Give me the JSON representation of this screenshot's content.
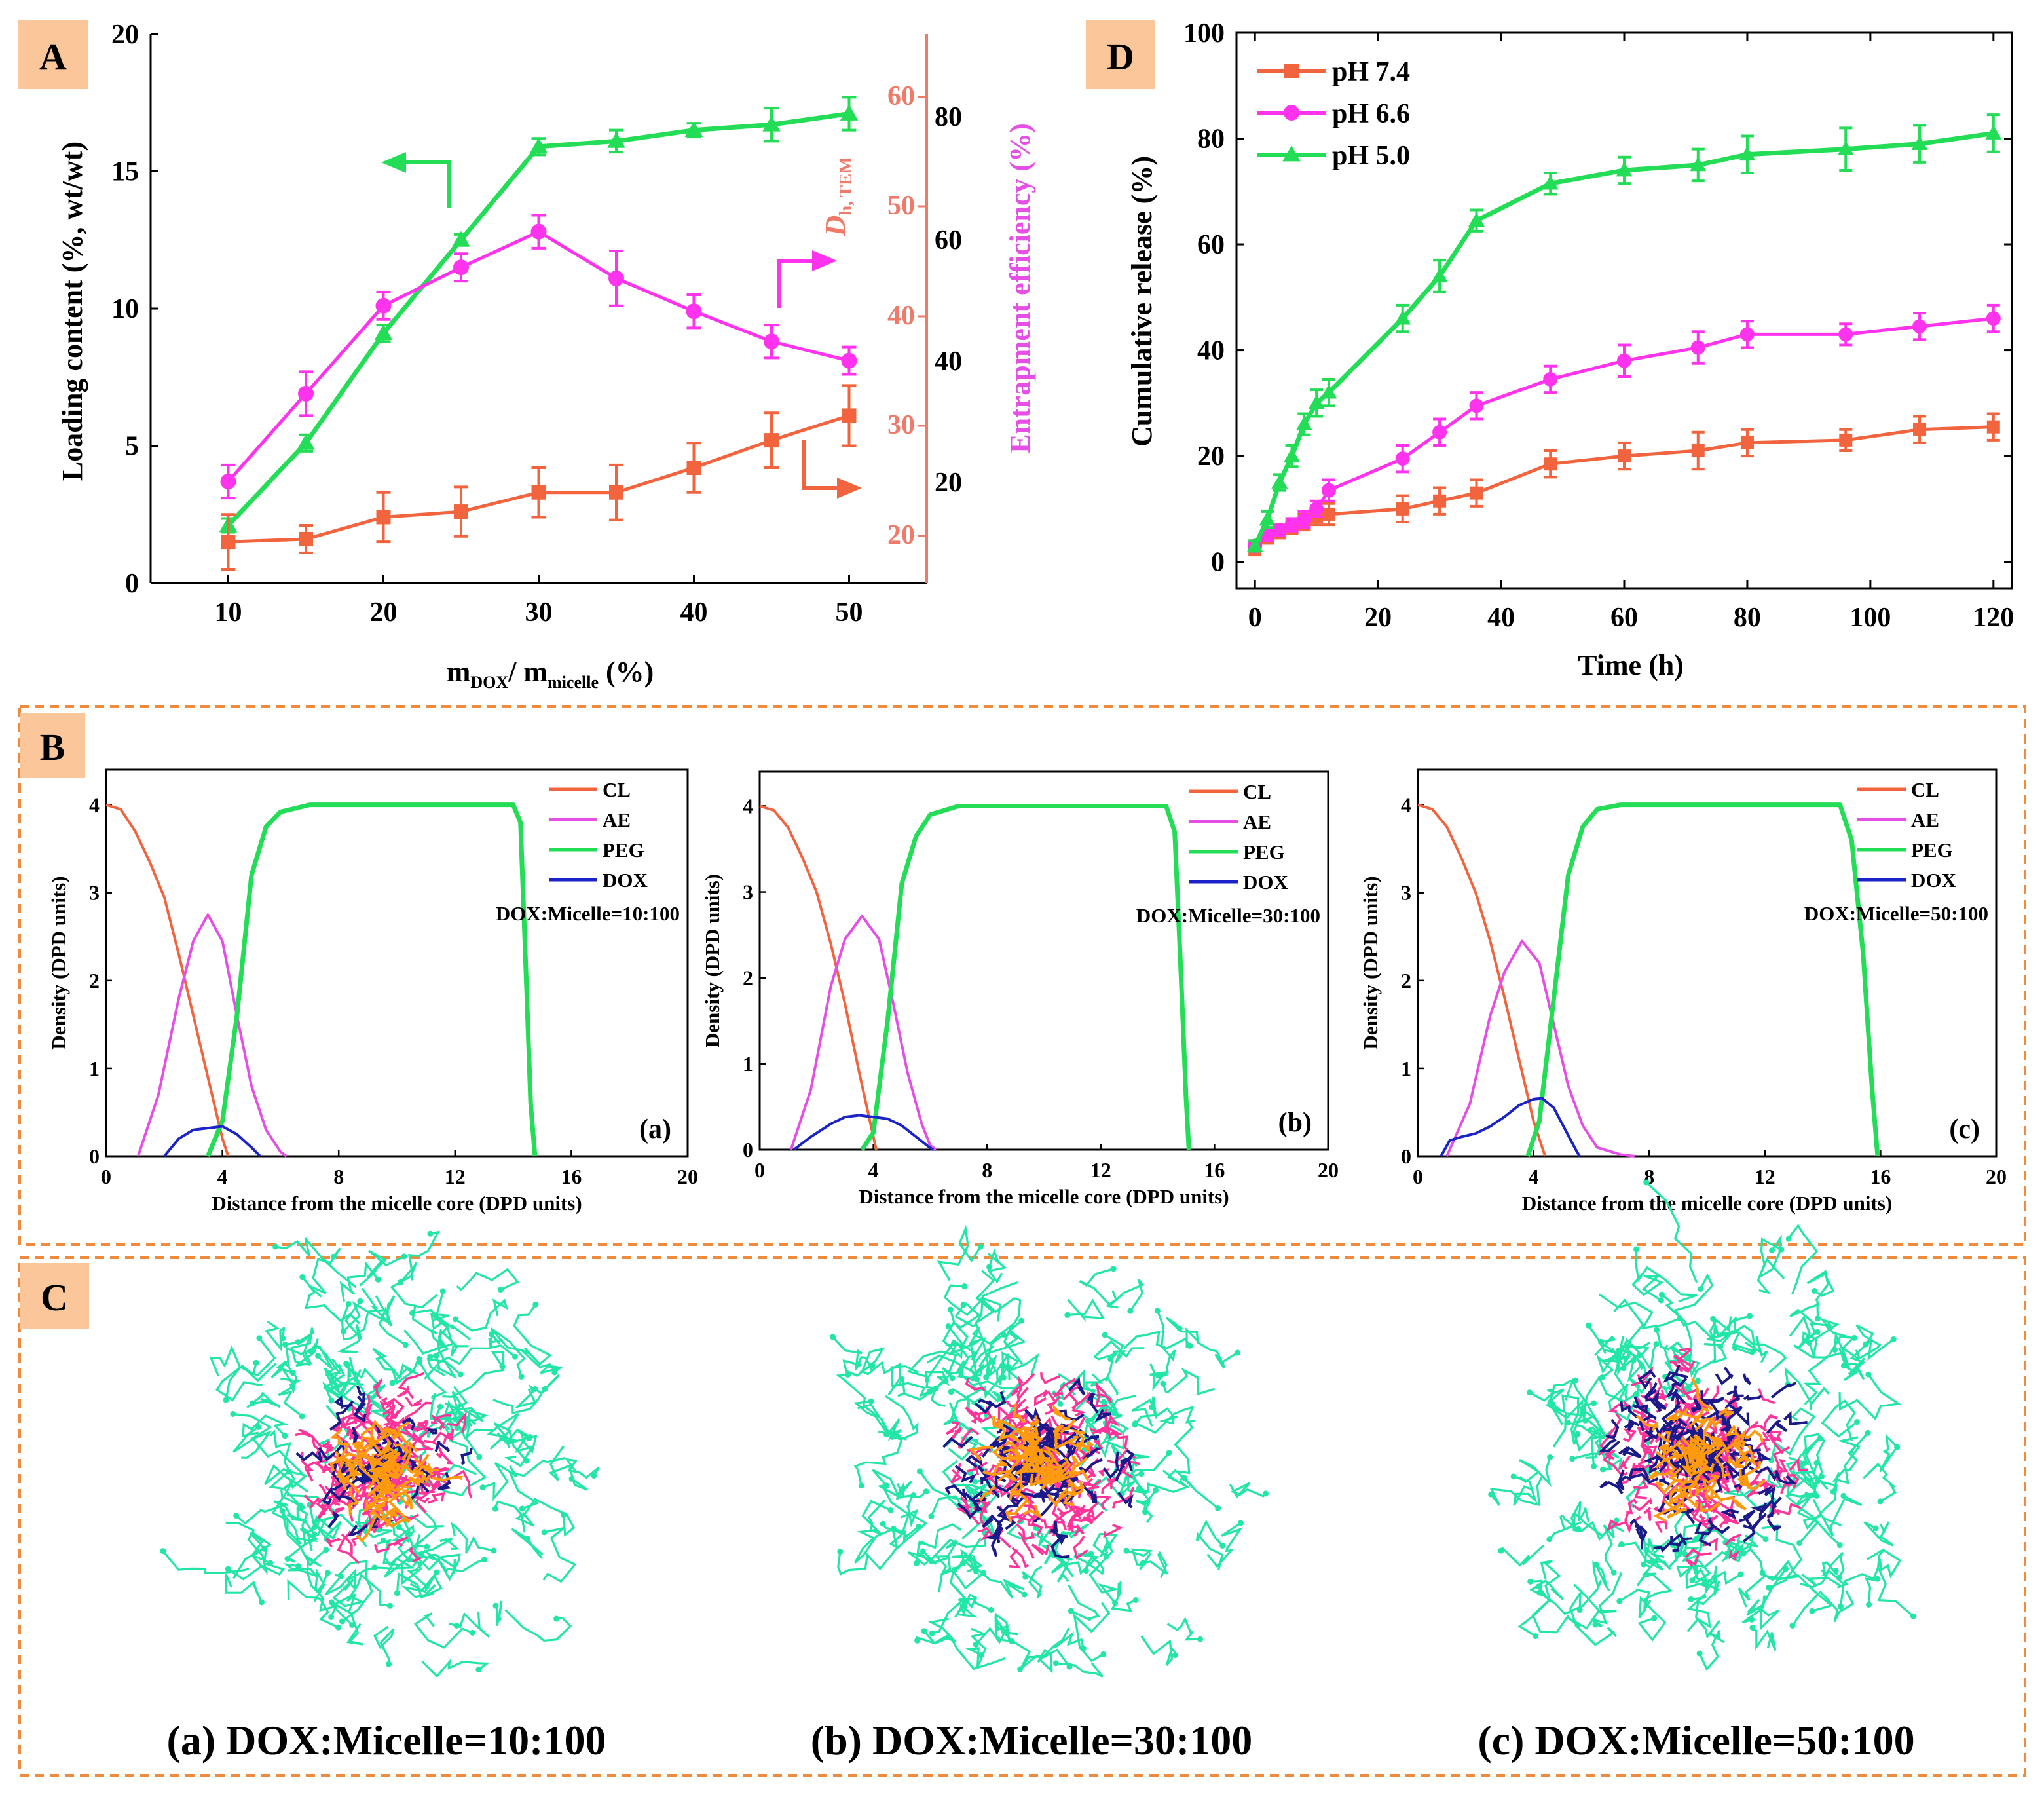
{
  "colors": {
    "green": "#22dd55",
    "magenta": "#ff33ee",
    "orange": "#f2643e",
    "blue": "#1a22c8",
    "salmon": "#f07a6a",
    "violet": "#e64fe6",
    "badge": "#fbc79a",
    "frame": "#f08a3c",
    "peg_chain": "#22e6a8",
    "core_pink": "#ff3399",
    "core_navy": "#1c1a8a",
    "core_orange": "#ff9a10"
  },
  "panels": {
    "A": {
      "badge": "A"
    },
    "B": {
      "badge": "B"
    },
    "C": {
      "badge": "C",
      "captions": [
        "(a) DOX:Micelle=10:100",
        "(b) DOX:Micelle=30:100",
        "(c) DOX:Micelle=50:100"
      ]
    },
    "D": {
      "badge": "D"
    }
  },
  "chart_data": [
    {
      "id": "A",
      "type": "line",
      "xlabel_main": "m",
      "xlabel_sub1": "DOX",
      "xlabel_mid": "/ m",
      "xlabel_sub2": "micelle",
      "xlabel_end": " (%)",
      "ylabel": "Loading content (%, wt/wt)",
      "y2label_italic": "D",
      "y2label_sub": "h, TEM",
      "y3label": "Entrapment efficiency (%)",
      "x": [
        10,
        15,
        20,
        25,
        30,
        35,
        40,
        45,
        50
      ],
      "xlim": [
        5,
        55
      ],
      "xticks": [
        10,
        20,
        30,
        40,
        50
      ],
      "ylim": [
        0,
        20
      ],
      "yticks": [
        0,
        5,
        10,
        15,
        20
      ],
      "y2ticks": [
        20,
        30,
        40,
        50,
        60
      ],
      "y3ticks": [
        20,
        40,
        60,
        80
      ],
      "series": [
        {
          "name": "Loading content",
          "axis": "left",
          "color": "green",
          "marker": "triangle",
          "values": [
            2.1,
            5.1,
            9.1,
            12.5,
            15.9,
            16.1,
            16.5,
            16.7,
            17.1
          ],
          "errors": [
            0.25,
            0.3,
            0.3,
            0.2,
            0.3,
            0.4,
            0.25,
            0.6,
            0.6
          ]
        },
        {
          "name": "Entrapment efficiency",
          "axis": "left",
          "color": "magenta",
          "marker": "circle",
          "values": [
            3.7,
            6.9,
            10.1,
            11.5,
            12.8,
            11.1,
            9.9,
            8.8,
            8.1
          ],
          "errors": [
            0.6,
            0.8,
            0.5,
            0.5,
            0.6,
            1.0,
            0.6,
            0.6,
            0.5
          ]
        },
        {
          "name": "Dh,TEM",
          "axis": "left",
          "color": "orange",
          "marker": "square",
          "values": [
            1.5,
            1.6,
            2.4,
            2.6,
            3.3,
            3.3,
            4.2,
            5.2,
            6.1
          ],
          "errors": [
            1.0,
            0.5,
            0.9,
            0.9,
            0.9,
            1.0,
            0.9,
            1.0,
            1.1
          ]
        }
      ]
    },
    {
      "id": "D",
      "type": "line",
      "xlabel": "Time (h)",
      "ylabel": "Cumulative release (%)",
      "xlim": [
        -3,
        123
      ],
      "ylim": [
        -5,
        100
      ],
      "xticks": [
        0,
        20,
        40,
        60,
        80,
        100,
        120
      ],
      "yticks": [
        0,
        20,
        40,
        60,
        80,
        100
      ],
      "x": [
        0,
        2,
        4,
        6,
        8,
        10,
        12,
        24,
        30,
        36,
        48,
        60,
        72,
        80,
        96,
        108,
        120
      ],
      "series": [
        {
          "name": "pH 7.4",
          "color": "orange",
          "marker": "square",
          "values": [
            2.5,
            4.5,
            5.5,
            6.5,
            7.5,
            8.5,
            9.0,
            10.0,
            11.5,
            13.0,
            18.5,
            20.0,
            21.0,
            22.5,
            23.0,
            25.0,
            25.5
          ],
          "errors": [
            1.2,
            1.0,
            1.0,
            1.2,
            1.5,
            1.5,
            2.0,
            2.5,
            2.5,
            2.5,
            2.5,
            2.5,
            3.5,
            2.5,
            2.0,
            2.5,
            2.5
          ]
        },
        {
          "name": "pH 6.6",
          "color": "magenta",
          "marker": "circle",
          "values": [
            3.0,
            5.0,
            6.0,
            7.0,
            8.0,
            10.0,
            13.5,
            19.5,
            24.5,
            29.5,
            34.5,
            38.0,
            40.5,
            43.0,
            43.0,
            44.5,
            46.0
          ],
          "errors": [
            1.0,
            1.0,
            1.0,
            1.2,
            1.5,
            1.5,
            2.0,
            2.5,
            2.5,
            2.5,
            2.5,
            3.0,
            3.0,
            2.5,
            2.0,
            2.5,
            2.5
          ]
        },
        {
          "name": "pH 5.0",
          "color": "green",
          "marker": "triangle",
          "values": [
            3.0,
            8.0,
            15.0,
            20.0,
            26.0,
            30.0,
            32.0,
            46.0,
            54.0,
            64.5,
            71.5,
            74.0,
            75.0,
            77.0,
            78.0,
            79.0,
            81.0
          ],
          "errors": [
            1.0,
            1.5,
            1.5,
            2.0,
            2.0,
            2.5,
            2.5,
            2.5,
            3.0,
            2.0,
            2.0,
            2.5,
            3.0,
            3.5,
            4.0,
            3.5,
            3.5
          ]
        }
      ]
    },
    {
      "id": "B-a",
      "type": "line",
      "xlabel": "Distance from the micelle core (DPD units)",
      "ylabel": "Density (DPD units)",
      "xlim": [
        0,
        20
      ],
      "ylim": [
        0,
        4.4
      ],
      "xticks": [
        0,
        4,
        8,
        12,
        16,
        20
      ],
      "yticks": [
        0,
        1,
        2,
        3,
        4
      ],
      "annotation": "DOX:Micelle=10:100",
      "tag": "(a)",
      "series": [
        {
          "name": "CL",
          "color": "orange",
          "points": [
            [
              0,
              4.0
            ],
            [
              0.5,
              3.95
            ],
            [
              1,
              3.7
            ],
            [
              1.5,
              3.35
            ],
            [
              2,
              2.95
            ],
            [
              2.5,
              2.3
            ],
            [
              3,
              1.6
            ],
            [
              3.5,
              0.9
            ],
            [
              4,
              0.2
            ],
            [
              4.2,
              0
            ]
          ]
        },
        {
          "name": "AE",
          "color": "violet",
          "points": [
            [
              1.1,
              0
            ],
            [
              1.8,
              0.7
            ],
            [
              2.5,
              1.8
            ],
            [
              3,
              2.45
            ],
            [
              3.5,
              2.75
            ],
            [
              4,
              2.45
            ],
            [
              4.5,
              1.6
            ],
            [
              5,
              0.8
            ],
            [
              5.5,
              0.3
            ],
            [
              6,
              0.05
            ],
            [
              6.2,
              0
            ]
          ]
        },
        {
          "name": "PEG",
          "color": "green",
          "points": [
            [
              3.5,
              0
            ],
            [
              4,
              0.4
            ],
            [
              4.5,
              1.6
            ],
            [
              5,
              3.2
            ],
            [
              5.5,
              3.75
            ],
            [
              6,
              3.92
            ],
            [
              7,
              4.0
            ],
            [
              14,
              4.0
            ],
            [
              14.25,
              3.8
            ],
            [
              14.45,
              2.0
            ],
            [
              14.6,
              0.6
            ],
            [
              14.75,
              0
            ]
          ]
        },
        {
          "name": "DOX",
          "color": "blue",
          "points": [
            [
              2.0,
              0
            ],
            [
              2.5,
              0.2
            ],
            [
              3,
              0.3
            ],
            [
              3.5,
              0.32
            ],
            [
              4,
              0.34
            ],
            [
              4.5,
              0.25
            ],
            [
              5,
              0.1
            ],
            [
              5.3,
              0
            ]
          ]
        }
      ]
    },
    {
      "id": "B-b",
      "type": "line",
      "xlabel": "Distance from the micelle core (DPD units)",
      "ylabel": "Density (DPD units)",
      "xlim": [
        0,
        20
      ],
      "ylim": [
        0,
        4.4
      ],
      "xticks": [
        0,
        4,
        8,
        12,
        16,
        20
      ],
      "yticks": [
        0,
        1,
        2,
        3,
        4
      ],
      "annotation": "DOX:Micelle=30:100",
      "tag": "(b)",
      "series": [
        {
          "name": "CL",
          "color": "orange",
          "points": [
            [
              0,
              4.0
            ],
            [
              0.5,
              3.95
            ],
            [
              1,
              3.75
            ],
            [
              1.5,
              3.4
            ],
            [
              2,
              3.0
            ],
            [
              2.5,
              2.4
            ],
            [
              3,
              1.7
            ],
            [
              3.5,
              0.9
            ],
            [
              4,
              0.15
            ],
            [
              4.1,
              0
            ]
          ]
        },
        {
          "name": "AE",
          "color": "violet",
          "points": [
            [
              1.1,
              0
            ],
            [
              1.8,
              0.7
            ],
            [
              2.5,
              1.9
            ],
            [
              3,
              2.45
            ],
            [
              3.6,
              2.72
            ],
            [
              4.2,
              2.45
            ],
            [
              4.7,
              1.7
            ],
            [
              5.2,
              0.9
            ],
            [
              5.7,
              0.3
            ],
            [
              6,
              0.05
            ],
            [
              6.2,
              0
            ]
          ]
        },
        {
          "name": "PEG",
          "color": "green",
          "points": [
            [
              3.6,
              0
            ],
            [
              4,
              0.2
            ],
            [
              4.5,
              1.5
            ],
            [
              5,
              3.1
            ],
            [
              5.5,
              3.65
            ],
            [
              6,
              3.9
            ],
            [
              7,
              4.0
            ],
            [
              14.3,
              4.0
            ],
            [
              14.6,
              3.7
            ],
            [
              14.8,
              2.2
            ],
            [
              15,
              0.6
            ],
            [
              15.1,
              0
            ]
          ]
        },
        {
          "name": "DOX",
          "color": "blue",
          "points": [
            [
              1.2,
              0
            ],
            [
              1.8,
              0.15
            ],
            [
              2.5,
              0.3
            ],
            [
              3,
              0.38
            ],
            [
              3.5,
              0.4
            ],
            [
              4,
              0.38
            ],
            [
              4.5,
              0.36
            ],
            [
              5,
              0.28
            ],
            [
              5.5,
              0.15
            ],
            [
              6,
              0.02
            ],
            [
              6.1,
              0
            ]
          ]
        }
      ]
    },
    {
      "id": "B-c",
      "type": "line",
      "xlabel": "Distance from the micelle core (DPD units)",
      "ylabel": "Density (DPD units)",
      "xlim": [
        0,
        20
      ],
      "ylim": [
        0,
        4.4
      ],
      "xticks": [
        0,
        4,
        8,
        12,
        16,
        20
      ],
      "yticks": [
        0,
        1,
        2,
        3,
        4
      ],
      "annotation": "DOX:Micelle=50:100",
      "tag": "(c)",
      "series": [
        {
          "name": "CL",
          "color": "orange",
          "points": [
            [
              0,
              4.0
            ],
            [
              0.5,
              3.95
            ],
            [
              1,
              3.75
            ],
            [
              1.5,
              3.4
            ],
            [
              2,
              3.0
            ],
            [
              2.5,
              2.45
            ],
            [
              3,
              1.8
            ],
            [
              3.5,
              1.1
            ],
            [
              4,
              0.4
            ],
            [
              4.4,
              0
            ]
          ]
        },
        {
          "name": "AE",
          "color": "violet",
          "points": [
            [
              1.0,
              0
            ],
            [
              1.8,
              0.6
            ],
            [
              2.5,
              1.6
            ],
            [
              3,
              2.1
            ],
            [
              3.6,
              2.45
            ],
            [
              4.2,
              2.2
            ],
            [
              4.7,
              1.5
            ],
            [
              5.2,
              0.8
            ],
            [
              5.7,
              0.35
            ],
            [
              6.2,
              0.1
            ],
            [
              7,
              0.02
            ],
            [
              7.5,
              0
            ]
          ]
        },
        {
          "name": "PEG",
          "color": "green",
          "points": [
            [
              3.8,
              0
            ],
            [
              4.2,
              0.4
            ],
            [
              4.7,
              1.8
            ],
            [
              5.2,
              3.2
            ],
            [
              5.7,
              3.75
            ],
            [
              6.2,
              3.95
            ],
            [
              7,
              4.0
            ],
            [
              14.6,
              4.0
            ],
            [
              15,
              3.6
            ],
            [
              15.4,
              2.3
            ],
            [
              15.7,
              0.8
            ],
            [
              15.9,
              0
            ]
          ]
        },
        {
          "name": "DOX",
          "color": "blue",
          "points": [
            [
              0.8,
              0
            ],
            [
              1.1,
              0.18
            ],
            [
              1.5,
              0.22
            ],
            [
              2,
              0.26
            ],
            [
              2.5,
              0.34
            ],
            [
              3,
              0.45
            ],
            [
              3.5,
              0.58
            ],
            [
              4,
              0.65
            ],
            [
              4.3,
              0.66
            ],
            [
              4.7,
              0.55
            ],
            [
              5.1,
              0.3
            ],
            [
              5.5,
              0.05
            ],
            [
              5.6,
              0
            ]
          ]
        }
      ]
    }
  ]
}
